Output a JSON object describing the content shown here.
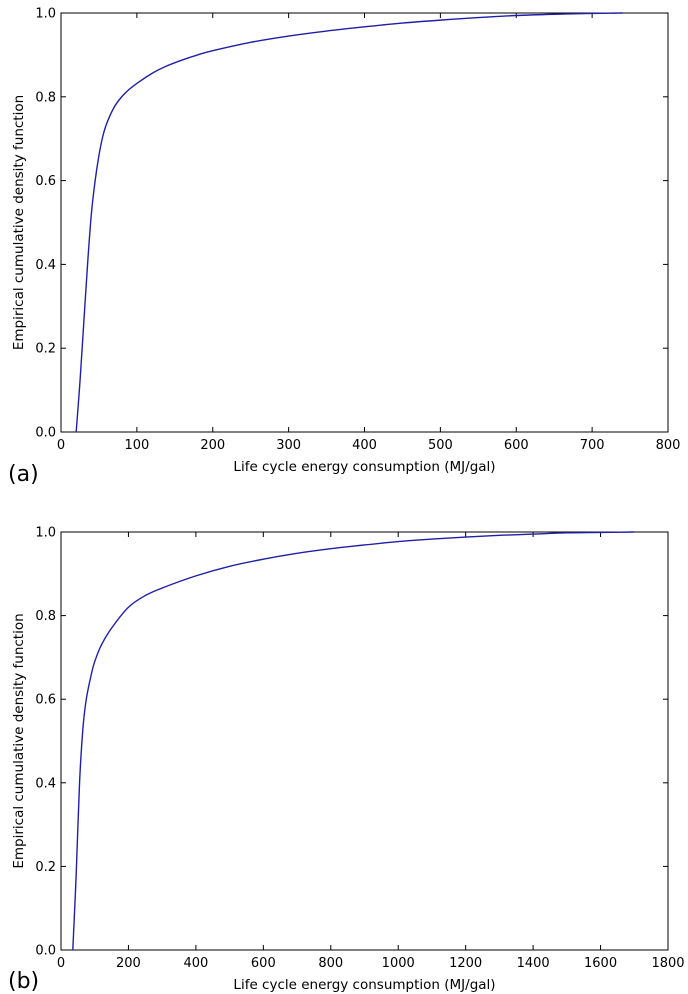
{
  "chart_data": [
    {
      "type": "line",
      "panel_label": "(a)",
      "xlabel": "Life cycle energy consumption (MJ/gal)",
      "ylabel": "Empirical cumulative density function",
      "xlim": [
        0,
        800
      ],
      "ylim": [
        0,
        1.0
      ],
      "xticks": [
        "0",
        "100",
        "200",
        "300",
        "400",
        "500",
        "600",
        "700",
        "800"
      ],
      "yticks": [
        "0.0",
        "0.2",
        "0.4",
        "0.6",
        "0.8",
        "1.0"
      ],
      "grid": false,
      "series": [
        {
          "color": "#1f1fa8",
          "x": [
            20,
            25,
            30,
            35,
            40,
            45,
            50,
            55,
            60,
            70,
            80,
            90,
            100,
            120,
            140,
            160,
            180,
            200,
            250,
            300,
            350,
            400,
            450,
            500,
            550,
            600,
            650,
            700,
            740
          ],
          "y": [
            0.0,
            0.12,
            0.26,
            0.4,
            0.52,
            0.6,
            0.66,
            0.705,
            0.735,
            0.775,
            0.8,
            0.818,
            0.832,
            0.856,
            0.874,
            0.888,
            0.9,
            0.91,
            0.93,
            0.945,
            0.957,
            0.967,
            0.976,
            0.983,
            0.989,
            0.994,
            0.997,
            0.999,
            1.0
          ]
        }
      ]
    },
    {
      "type": "line",
      "panel_label": "(b)",
      "xlabel": "Life cycle energy consumption (MJ/gal)",
      "ylabel": "Empirical cumulative density function",
      "xlim": [
        0,
        1800
      ],
      "ylim": [
        0,
        1.0
      ],
      "xticks": [
        "0",
        "200",
        "400",
        "600",
        "800",
        "1000",
        "1200",
        "1400",
        "1600",
        "1800"
      ],
      "yticks": [
        "0.0",
        "0.2",
        "0.4",
        "0.6",
        "0.8",
        "1.0"
      ],
      "grid": false,
      "series": [
        {
          "color": "#1f1fa8",
          "x": [
            35,
            45,
            55,
            65,
            75,
            90,
            100,
            120,
            150,
            200,
            250,
            300,
            400,
            500,
            600,
            700,
            800,
            900,
            1000,
            1100,
            1200,
            1300,
            1400,
            1500,
            1600,
            1700
          ],
          "y": [
            0.0,
            0.18,
            0.4,
            0.53,
            0.6,
            0.66,
            0.69,
            0.73,
            0.77,
            0.82,
            0.848,
            0.866,
            0.895,
            0.918,
            0.935,
            0.949,
            0.96,
            0.969,
            0.977,
            0.983,
            0.988,
            0.992,
            0.995,
            0.998,
            0.999,
            1.0
          ]
        }
      ]
    }
  ]
}
